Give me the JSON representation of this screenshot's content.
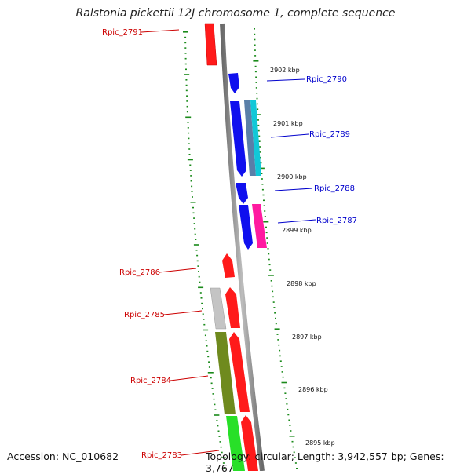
{
  "title": "Ralstonia pickettii 12J chromosome 1, complete sequence",
  "footer": {
    "accession": "Accession: NC_010682",
    "stats": "Topology: circular; Length: 3,942,557 bp; Genes: 3,767"
  },
  "colors": {
    "backbone": "#8a8a8a",
    "tick": "#1a8a1a",
    "label_red": "#cc0000",
    "label_blue": "#0000cc"
  },
  "genes": [
    {
      "id": "Rpic_2791",
      "color": "#ff1a1a",
      "label_color": "red"
    },
    {
      "id": "Rpic_2790",
      "color": "#1010ee",
      "label_color": "blue"
    },
    {
      "id": "Rpic_2789",
      "color": "#1010ee",
      "label_color": "blue"
    },
    {
      "id": "Rpic_2788",
      "color": "#1010ee",
      "label_color": "blue"
    },
    {
      "id": "Rpic_2787",
      "color": "#ff1aa0",
      "label_color": "blue"
    },
    {
      "id": "Rpic_2786",
      "color": "#ff1a1a",
      "label_color": "red"
    },
    {
      "id": "Rpic_2785",
      "color": "#ff1a1a",
      "label_color": "red"
    },
    {
      "id": "Rpic_2784",
      "color": "#ff1a1a",
      "label_color": "red"
    },
    {
      "id": "Rpic_2783",
      "color": "#ff1a1a",
      "label_color": "red"
    }
  ],
  "extra_features": [
    {
      "name": "steelblue-feature",
      "color": "#5a7fa8"
    },
    {
      "name": "cyan-feature",
      "color": "#11c8d8"
    },
    {
      "name": "grey-feature",
      "color": "#c4c4c4"
    },
    {
      "name": "olive-feature",
      "color": "#6f8a1e"
    },
    {
      "name": "green-feature",
      "color": "#28e028"
    }
  ],
  "kbp_labels": [
    "2902 kbp",
    "2901 kbp",
    "2900 kbp",
    "2899 kbp",
    "2898 kbp",
    "2897 kbp",
    "2896 kbp",
    "2895 kbp"
  ]
}
